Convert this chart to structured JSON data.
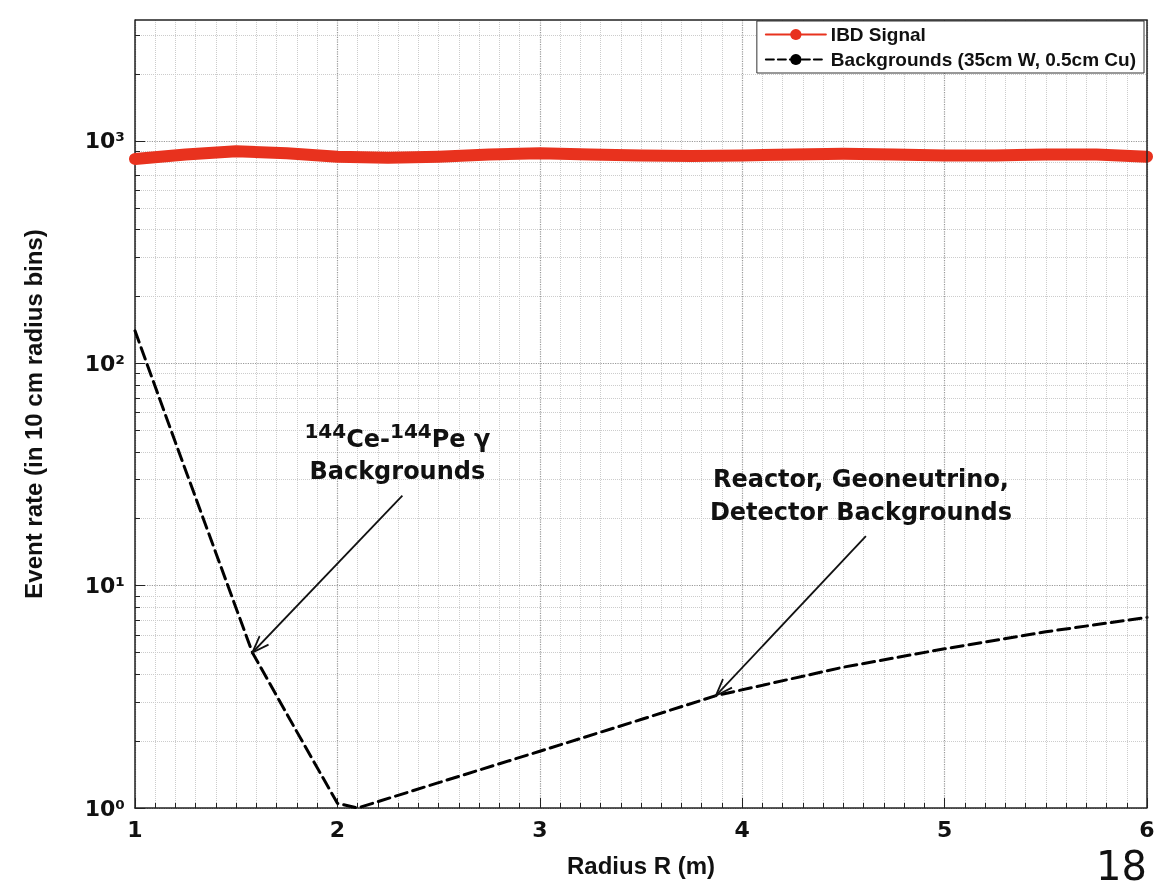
{
  "chart_data": {
    "type": "line",
    "xlabel": "Radius R (m)",
    "ylabel": "Event rate (in 10 cm radius bins)",
    "log": "y",
    "grid": true,
    "legend": "top right",
    "marker": "none",
    "xlim": [
      1,
      6
    ],
    "xticks": [
      1,
      2,
      3,
      4,
      5,
      6
    ],
    "ylim": [
      1,
      3500
    ],
    "yticks": [
      {
        "value": 1,
        "label": "10⁰"
      },
      {
        "value": 10,
        "label": "10¹"
      },
      {
        "value": 100,
        "label": "10²"
      },
      {
        "value": 1000,
        "label": "10³"
      }
    ],
    "series": [
      {
        "name": "IBD Signal",
        "color": "#e8321e",
        "line_style": "solid",
        "x": [
          1,
          1.25,
          1.5,
          1.75,
          2,
          2.25,
          2.5,
          2.75,
          3,
          3.25,
          3.5,
          3.75,
          4,
          4.25,
          4.5,
          4.75,
          5,
          5.25,
          5.5,
          5.75,
          6
        ],
        "values": [
          830,
          870,
          900,
          880,
          850,
          840,
          850,
          870,
          880,
          870,
          860,
          855,
          860,
          870,
          875,
          870,
          860,
          860,
          870,
          870,
          850
        ]
      },
      {
        "name": "Backgrounds (35cm W, 0.5cm Cu)",
        "color": "#000000",
        "line_style": "dashed",
        "x": [
          1,
          1.2,
          1.4,
          1.58,
          1.8,
          2.0,
          2.1,
          2.5,
          3,
          3.5,
          3.87,
          4.5,
          5,
          5.5,
          6
        ],
        "values": [
          140,
          44,
          14,
          5,
          2.2,
          1.05,
          1.0,
          1.3,
          1.8,
          2.5,
          3.2,
          4.3,
          5.2,
          6.2,
          7.2
        ]
      }
    ],
    "annotations": [
      {
        "text": "$^{144}$Ce-$^{144}$Pe γ\nBackgrounds",
        "x": 1.58,
        "y": 5
      },
      {
        "text": "Reactor, Geoneutrino,\nDetector Backgrounds",
        "x": 3.87,
        "y": 3.2
      },
      "18"
    ]
  }
}
